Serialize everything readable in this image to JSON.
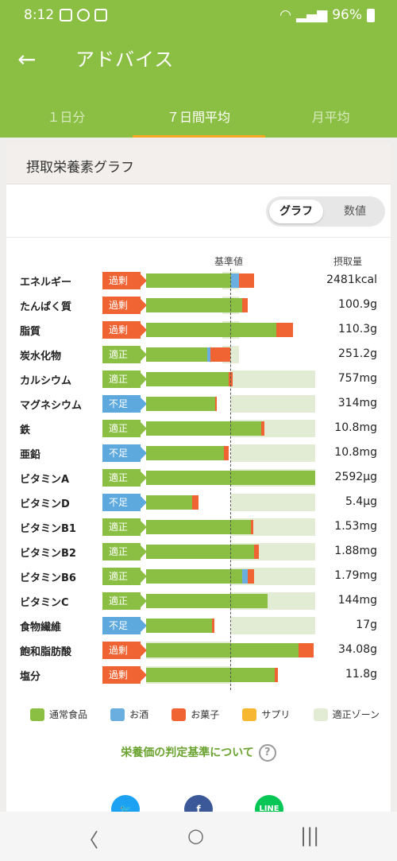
{
  "status": {
    "time": "8:12",
    "battery": "96%"
  },
  "appbar": {
    "title": "アドバイス",
    "back_icon": "←"
  },
  "tabs": [
    {
      "label": "１日分",
      "active": false
    },
    {
      "label": "７日間平均",
      "active": true
    },
    {
      "label": "月平均",
      "active": false
    }
  ],
  "card": {
    "title": "摂取栄養素グラフ"
  },
  "toggle": {
    "graph": "グラフ",
    "numeric": "数値"
  },
  "headers": {
    "reference": "基準値",
    "intake": "摂取量"
  },
  "colors": {
    "food": "#8bbf43",
    "alcohol": "#6aaee0",
    "snack": "#f06433",
    "supplement": "#f7b731",
    "zone": "#e2ecd5"
  },
  "chart_data": {
    "type": "bar",
    "reference_position": 0.5,
    "rows": [
      {
        "label": "エネルギー",
        "status": "過剰",
        "zone": [
          0.45,
          0.55
        ],
        "food": 0.5,
        "alcohol": 0.05,
        "snack": 0.09,
        "value": "2481kcal"
      },
      {
        "label": "たんぱく質",
        "status": "過剰",
        "zone": [
          0.45,
          0.55
        ],
        "food": 0.57,
        "alcohol": 0,
        "snack": 0.03,
        "value": "100.9g"
      },
      {
        "label": "脂質",
        "status": "過剰",
        "zone": [
          0.45,
          0.55
        ],
        "food": 0.77,
        "alcohol": 0,
        "snack": 0.1,
        "value": "110.3g"
      },
      {
        "label": "炭水化物",
        "status": "適正",
        "zone": [
          0.45,
          0.55
        ],
        "food": 0.36,
        "alcohol": 0.02,
        "snack": 0.12,
        "value": "251.2g"
      },
      {
        "label": "カルシウム",
        "status": "適正",
        "zone": [
          0.5,
          1.0
        ],
        "food": 0.49,
        "alcohol": 0,
        "snack": 0.02,
        "value": "757mg"
      },
      {
        "label": "マグネシウム",
        "status": "不足",
        "zone": [
          0.5,
          1.0
        ],
        "food": 0.41,
        "alcohol": 0,
        "snack": 0.01,
        "value": "314mg"
      },
      {
        "label": "鉄",
        "status": "適正",
        "zone": [
          0.5,
          1.0
        ],
        "food": 0.68,
        "alcohol": 0,
        "snack": 0.02,
        "value": "10.8mg"
      },
      {
        "label": "亜鉛",
        "status": "不足",
        "zone": [
          0.5,
          1.0
        ],
        "food": 0.46,
        "alcohol": 0,
        "snack": 0.03,
        "value": "10.8mg"
      },
      {
        "label": "ビタミンA",
        "status": "適正",
        "zone": [
          0.5,
          1.0
        ],
        "food": 1.0,
        "alcohol": 0,
        "snack": 0,
        "value": "2592µg"
      },
      {
        "label": "ビタミンD",
        "status": "不足",
        "zone": [
          0.5,
          1.0
        ],
        "food": 0.27,
        "alcohol": 0,
        "snack": 0.04,
        "value": "5.4µg"
      },
      {
        "label": "ビタミンB1",
        "status": "適正",
        "zone": [
          0.5,
          1.0
        ],
        "food": 0.62,
        "alcohol": 0,
        "snack": 0.015,
        "value": "1.53mg"
      },
      {
        "label": "ビタミンB2",
        "status": "適正",
        "zone": [
          0.5,
          1.0
        ],
        "food": 0.64,
        "alcohol": 0,
        "snack": 0.025,
        "value": "1.88mg"
      },
      {
        "label": "ビタミンB6",
        "status": "適正",
        "zone": [
          0.5,
          1.0
        ],
        "food": 0.57,
        "alcohol": 0.03,
        "snack": 0.04,
        "value": "1.79mg"
      },
      {
        "label": "ビタミンC",
        "status": "適正",
        "zone": [
          0.5,
          1.0
        ],
        "food": 0.72,
        "alcohol": 0,
        "snack": 0,
        "value": "144mg"
      },
      {
        "label": "食物繊維",
        "status": "不足",
        "zone": [
          0.5,
          1.0
        ],
        "food": 0.39,
        "alcohol": 0,
        "snack": 0.015,
        "value": "17g"
      },
      {
        "label": "飽和脂肪酸",
        "status": "過剰",
        "zone": [
          0.0,
          0.5
        ],
        "food": 0.9,
        "alcohol": 0,
        "snack": 0.09,
        "value": "34.08g"
      },
      {
        "label": "塩分",
        "status": "過剰",
        "zone": [
          0.0,
          0.5
        ],
        "food": 0.76,
        "alcohol": 0,
        "snack": 0.02,
        "value": "11.8g"
      }
    ]
  },
  "legend": [
    {
      "label": "通常食品",
      "color": "#8bbf43"
    },
    {
      "label": "お酒",
      "color": "#6aaee0"
    },
    {
      "label": "お菓子",
      "color": "#f06433"
    },
    {
      "label": "サプリ",
      "color": "#f7b731"
    },
    {
      "label": "適正ゾーン",
      "color": "#e2ecd5"
    }
  ],
  "criteria_link": "栄養価の判定基準について",
  "criteria_icon": "?",
  "social": {
    "twitter": "twitter-icon",
    "facebook": "f",
    "line": "LINE"
  },
  "navbar": {
    "back": "〈",
    "home": "○",
    "recents": "|||"
  }
}
